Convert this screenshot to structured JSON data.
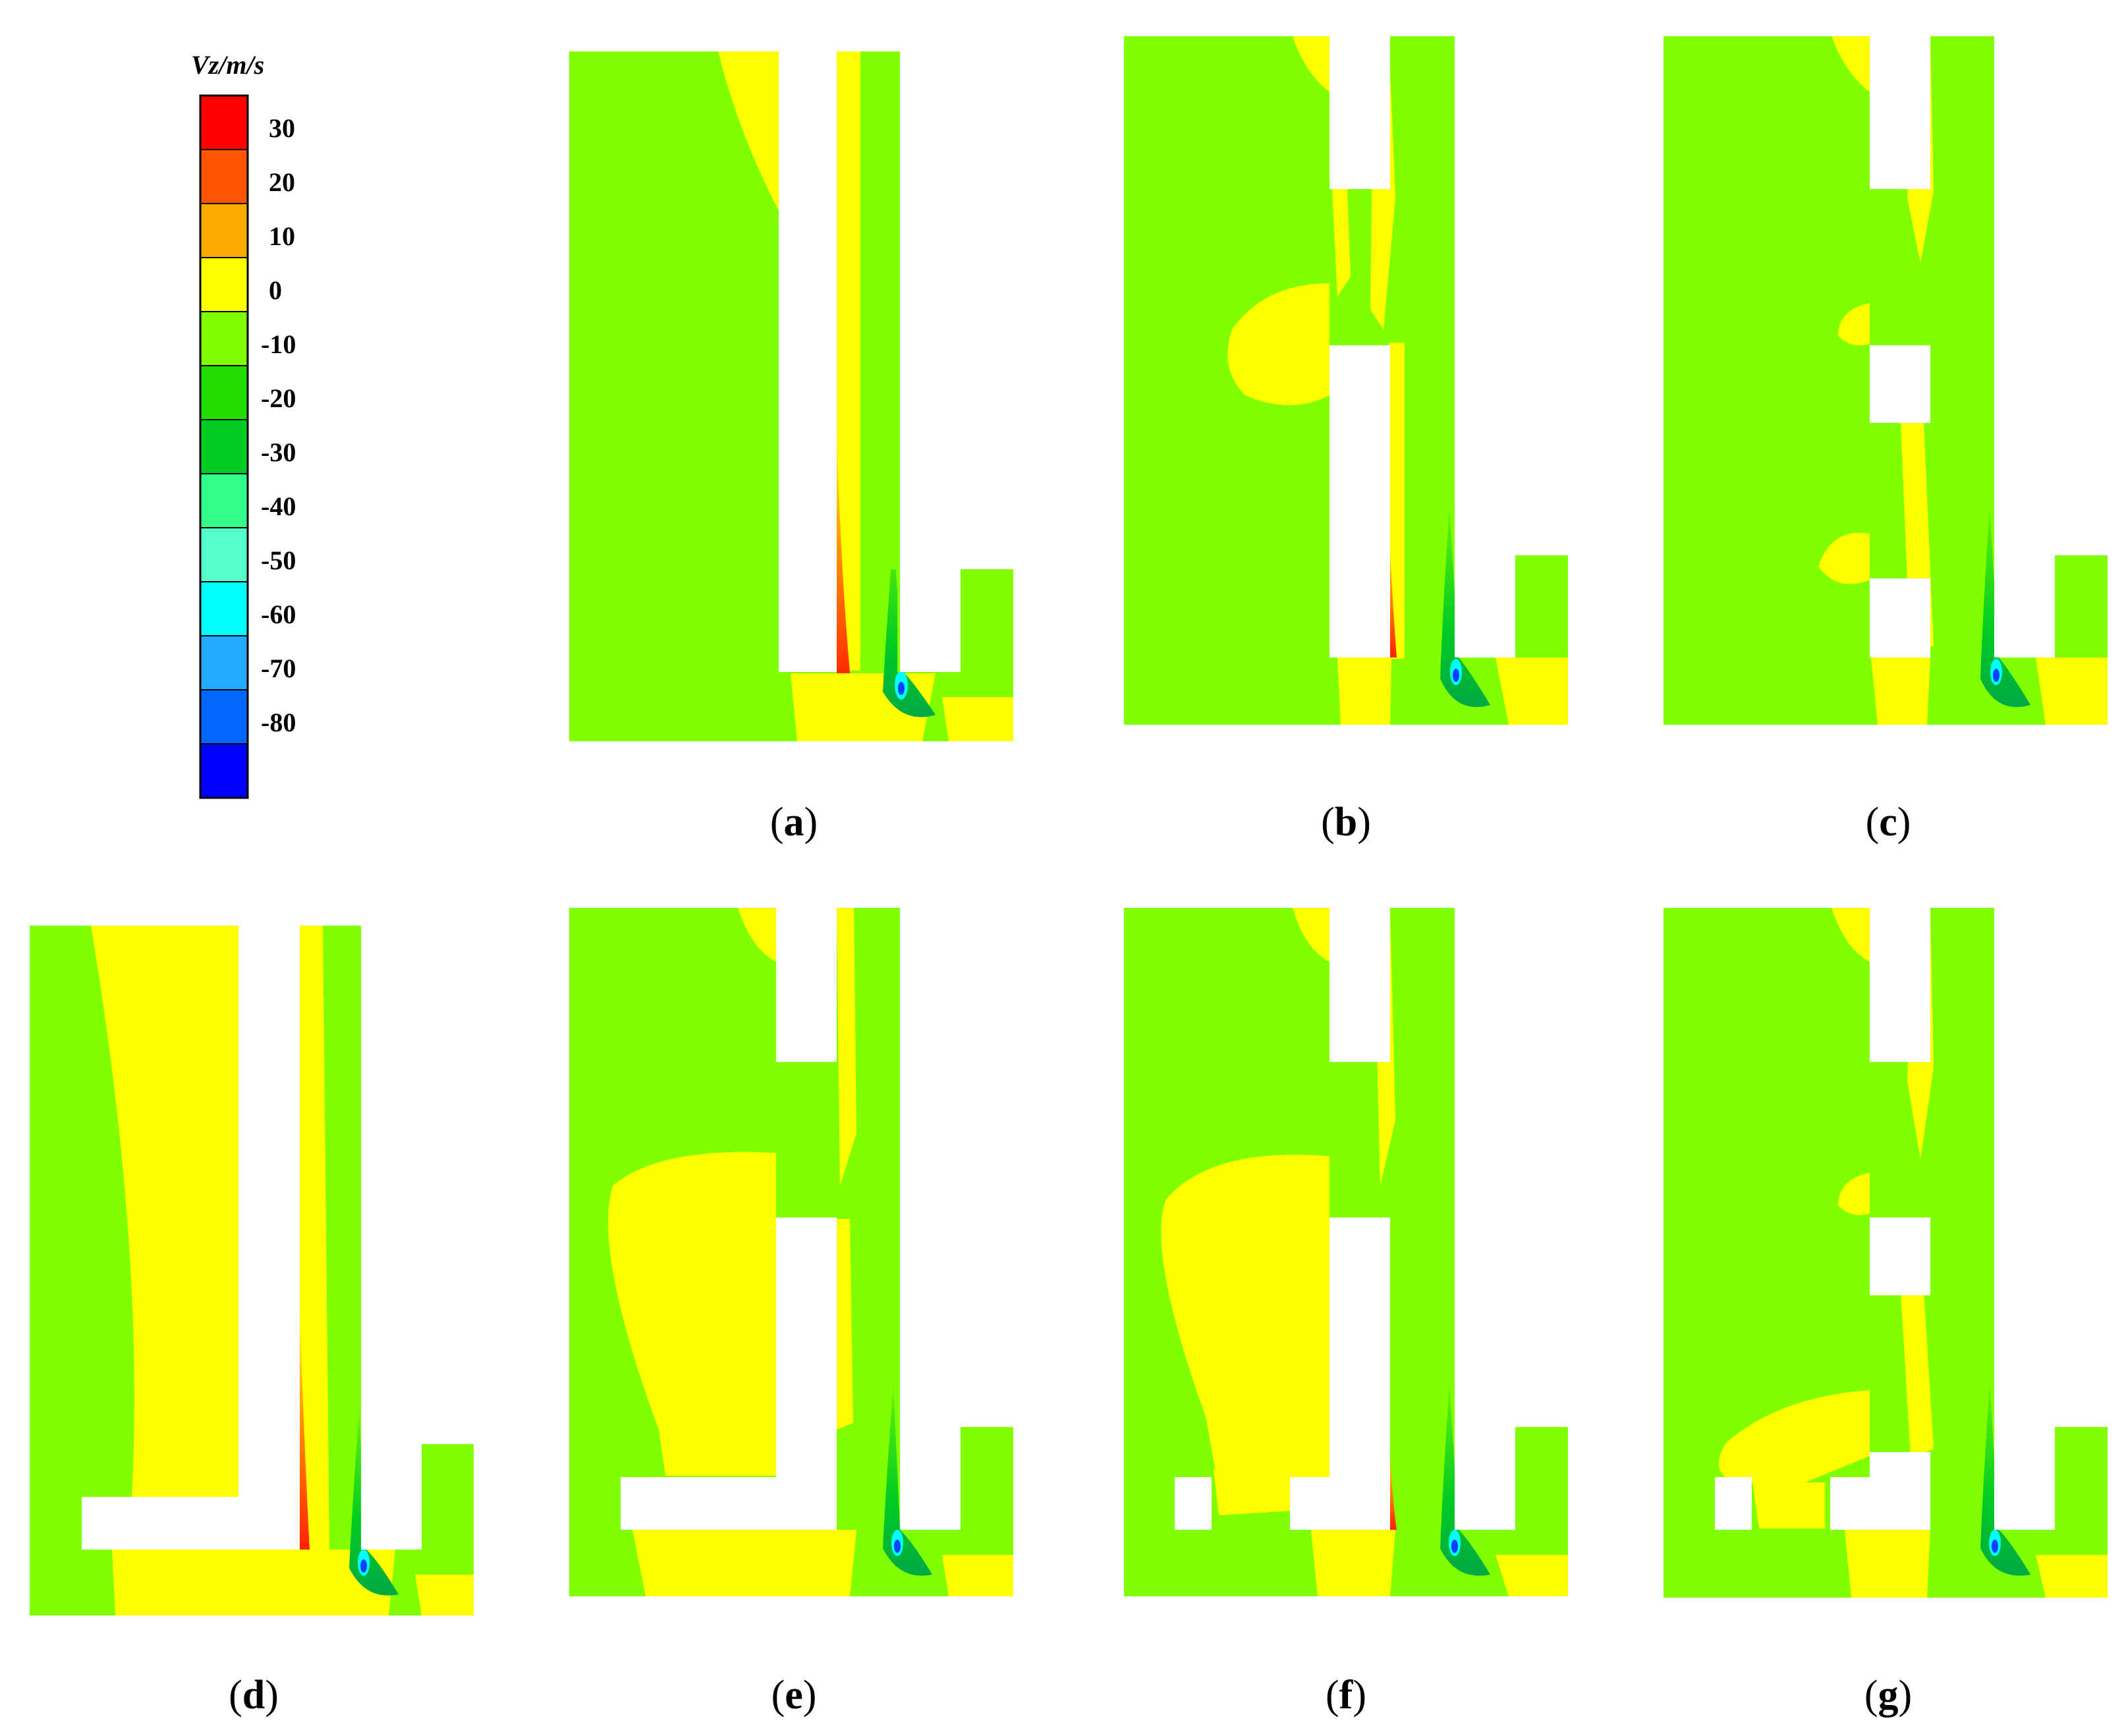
{
  "colorbar": {
    "title": "Vz/m/s",
    "labels": [
      "30",
      "20",
      "10",
      "0",
      "-10",
      "-20",
      "-30",
      "-40",
      "-50",
      "-60",
      "-70",
      "-80"
    ],
    "colors": [
      "#ff0000",
      "#ff5500",
      "#ffaa00",
      "#ffff00",
      "#80ff00",
      "#22dd00",
      "#00cc22",
      "#33ff88",
      "#55ffcc",
      "#00ffff",
      "#22aaff",
      "#0066ff",
      "#0000ff"
    ]
  },
  "colors": {
    "background": "#80ff00",
    "positive": "#ffff00",
    "jet_hot": "#ff5500",
    "jet_core": "#ff0000",
    "wake_green": "#00cc22",
    "wake_cyan": "#00ffff",
    "wake_blue": "#0044ff",
    "solid": "#ffffff"
  },
  "panels": [
    {
      "id": "a",
      "label_open": "(",
      "label_letter": "a",
      "label_close": ")"
    },
    {
      "id": "b",
      "label_open": "(",
      "label_letter": "b",
      "label_close": ")"
    },
    {
      "id": "c",
      "label_open": "(",
      "label_letter": "c",
      "label_close": ")"
    },
    {
      "id": "d",
      "label_open": "(",
      "label_letter": "d",
      "label_close": ")"
    },
    {
      "id": "e",
      "label_open": "(",
      "label_letter": "e",
      "label_close": ")"
    },
    {
      "id": "f",
      "label_open": "(",
      "label_letter": "f",
      "label_close": ")"
    },
    {
      "id": "g",
      "label_open": "(",
      "label_letter": "g",
      "label_close": ")"
    }
  ]
}
